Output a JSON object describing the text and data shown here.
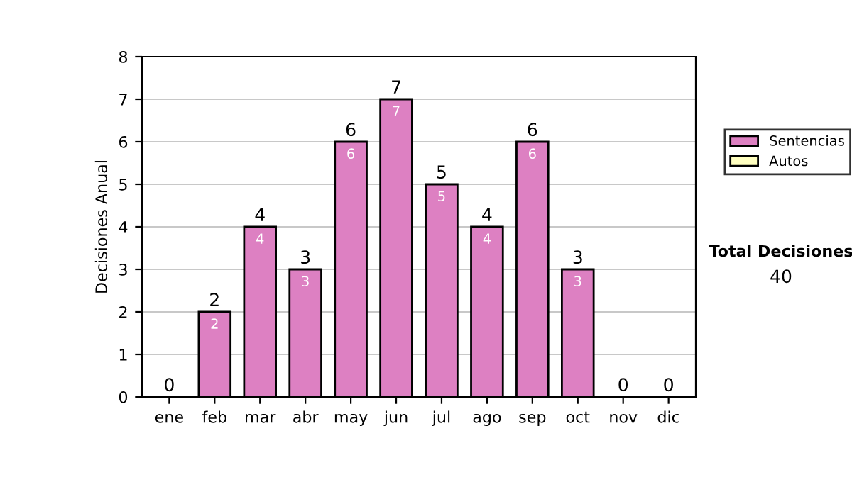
{
  "chart_data": {
    "type": "bar",
    "stacked": true,
    "ylabel": "Decisiones Anual",
    "categories": [
      "ene",
      "feb",
      "mar",
      "abr",
      "may",
      "jun",
      "jul",
      "ago",
      "sep",
      "oct",
      "nov",
      "dic"
    ],
    "series": [
      {
        "name": "Sentencias",
        "color": "#dd80c2",
        "values": [
          0,
          2,
          4,
          3,
          6,
          7,
          5,
          4,
          6,
          3,
          0,
          0
        ],
        "value_labels": [
          null,
          "2",
          "4",
          "3",
          "6",
          "7",
          "5",
          "4",
          "6",
          "3",
          null,
          null
        ]
      },
      {
        "name": "Autos",
        "color": "#ffffc0",
        "values": [
          0,
          0,
          0,
          0,
          0,
          0,
          0,
          0,
          0,
          0,
          0,
          0
        ]
      }
    ],
    "totals": [
      "0",
      "2",
      "4",
      "3",
      "6",
      "7",
      "5",
      "4",
      "6",
      "3",
      "0",
      "0"
    ],
    "ylim": [
      0,
      8
    ],
    "yticks": [
      0,
      1,
      2,
      3,
      4,
      5,
      6,
      7,
      8
    ],
    "grid": "y",
    "legend": "right",
    "annotations": [
      "Total Decisiones",
      "40"
    ]
  }
}
